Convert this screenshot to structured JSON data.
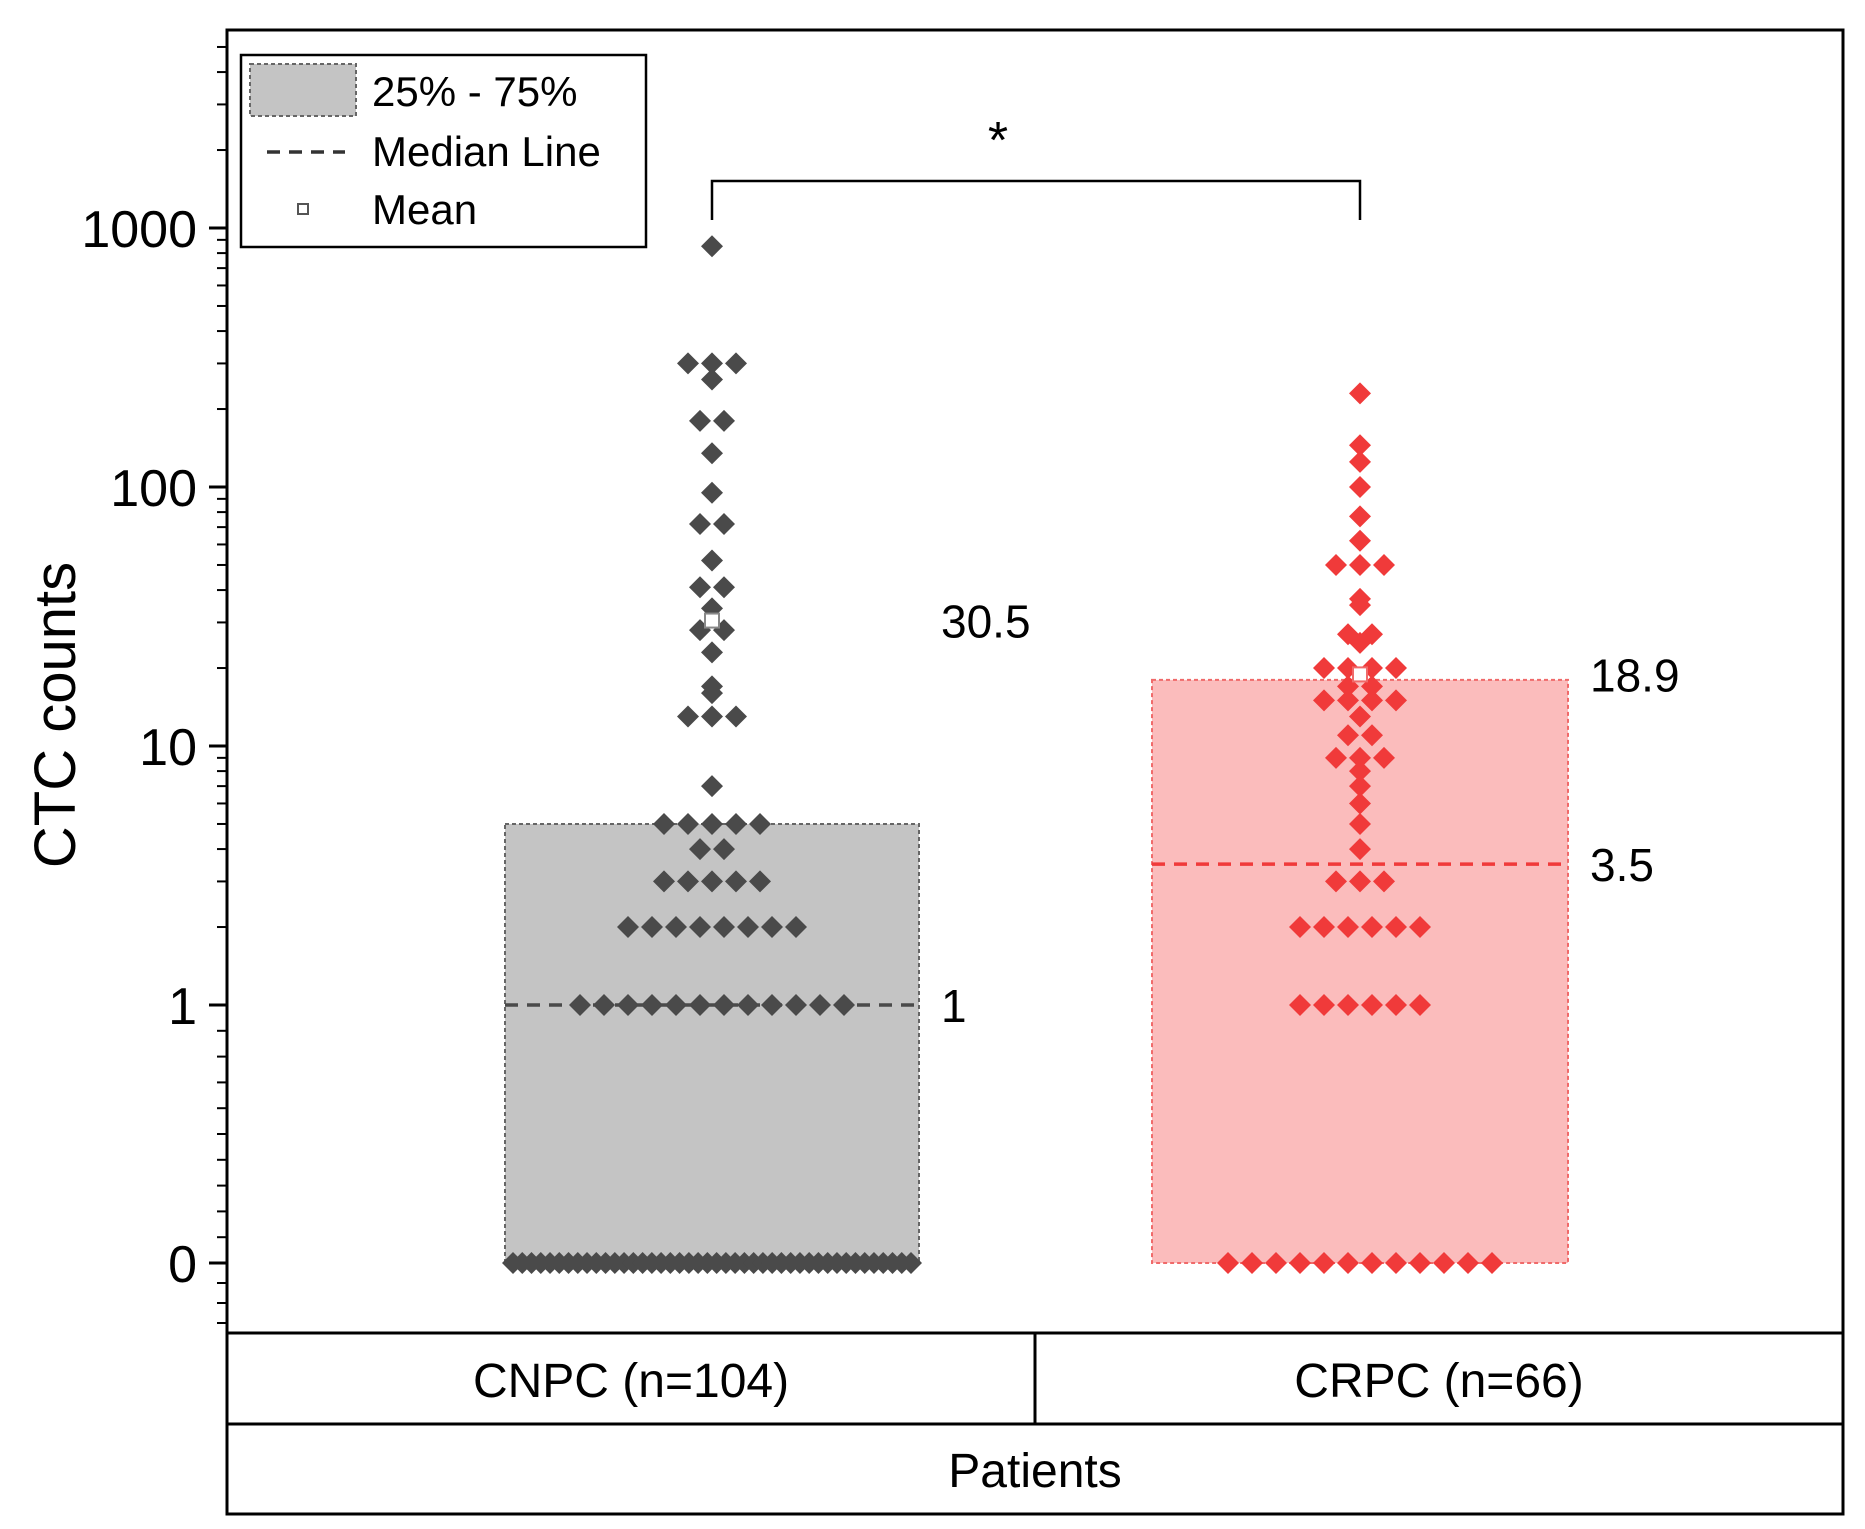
{
  "chart_data": {
    "type": "scatter",
    "ylabel": "CTC counts",
    "xlabel": "Patients",
    "y_scale": "log with zero break",
    "y_ticks": [
      {
        "value": 1000,
        "label": "1000"
      },
      {
        "value": 100,
        "label": "100"
      },
      {
        "value": 10,
        "label": "10"
      },
      {
        "value": 1,
        "label": "1"
      },
      {
        "value": 0,
        "label": "0"
      }
    ],
    "legend": {
      "position": "top-left",
      "entries": [
        {
          "key": "box",
          "label": "25% - 75%"
        },
        {
          "key": "median",
          "label": "Median Line"
        },
        {
          "key": "mean",
          "label": "Mean"
        }
      ]
    },
    "significance": {
      "label": "*",
      "between": [
        "CNPC (n=104)",
        "CRPC (n=66)"
      ]
    },
    "groups": [
      {
        "category": "CNPC (n=104)",
        "color": "#4a4a4a",
        "box_fill": "#c4c4c4",
        "box_stroke": "#666666",
        "q1": 0,
        "q3": 5,
        "median": 1,
        "mean": 30.5,
        "median_label": "1",
        "mean_label": "30.5",
        "points": [
          {
            "y": 850,
            "n": 1
          },
          {
            "y": 300,
            "n": 3
          },
          {
            "y": 260,
            "n": 1
          },
          {
            "y": 180,
            "n": 2
          },
          {
            "y": 135,
            "n": 1
          },
          {
            "y": 95,
            "n": 1
          },
          {
            "y": 72,
            "n": 2
          },
          {
            "y": 52,
            "n": 1
          },
          {
            "y": 41,
            "n": 2
          },
          {
            "y": 34,
            "n": 1
          },
          {
            "y": 28,
            "n": 2
          },
          {
            "y": 23,
            "n": 1
          },
          {
            "y": 17,
            "n": 1
          },
          {
            "y": 16,
            "n": 1
          },
          {
            "y": 13,
            "n": 3
          },
          {
            "y": 7,
            "n": 1
          },
          {
            "y": 5,
            "n": 5
          },
          {
            "y": 4,
            "n": 2
          },
          {
            "y": 3,
            "n": 5
          },
          {
            "y": 2,
            "n": 8
          },
          {
            "y": 1,
            "n": 12
          },
          {
            "y": 0,
            "n": 44
          }
        ]
      },
      {
        "category": "CRPC (n=66)",
        "color": "#f03a3a",
        "box_fill": "#fbbcbc",
        "box_stroke": "#f06a6a",
        "q1": 0,
        "q3": 18,
        "median": 3.5,
        "mean": 18.9,
        "median_label": "3.5",
        "mean_label": "18.9",
        "points": [
          {
            "y": 230,
            "n": 1
          },
          {
            "y": 145,
            "n": 1
          },
          {
            "y": 125,
            "n": 1
          },
          {
            "y": 100,
            "n": 1
          },
          {
            "y": 77,
            "n": 1
          },
          {
            "y": 62,
            "n": 1
          },
          {
            "y": 50,
            "n": 3
          },
          {
            "y": 37,
            "n": 1
          },
          {
            "y": 35,
            "n": 1
          },
          {
            "y": 27,
            "n": 2
          },
          {
            "y": 25,
            "n": 1
          },
          {
            "y": 20,
            "n": 4
          },
          {
            "y": 17,
            "n": 2
          },
          {
            "y": 15,
            "n": 4
          },
          {
            "y": 13,
            "n": 1
          },
          {
            "y": 11,
            "n": 2
          },
          {
            "y": 9,
            "n": 3
          },
          {
            "y": 8,
            "n": 1
          },
          {
            "y": 7,
            "n": 1
          },
          {
            "y": 6,
            "n": 1
          },
          {
            "y": 5,
            "n": 1
          },
          {
            "y": 4,
            "n": 1
          },
          {
            "y": 3,
            "n": 3
          },
          {
            "y": 2,
            "n": 6
          },
          {
            "y": 1,
            "n": 6
          },
          {
            "y": 0,
            "n": 12
          }
        ]
      }
    ]
  }
}
